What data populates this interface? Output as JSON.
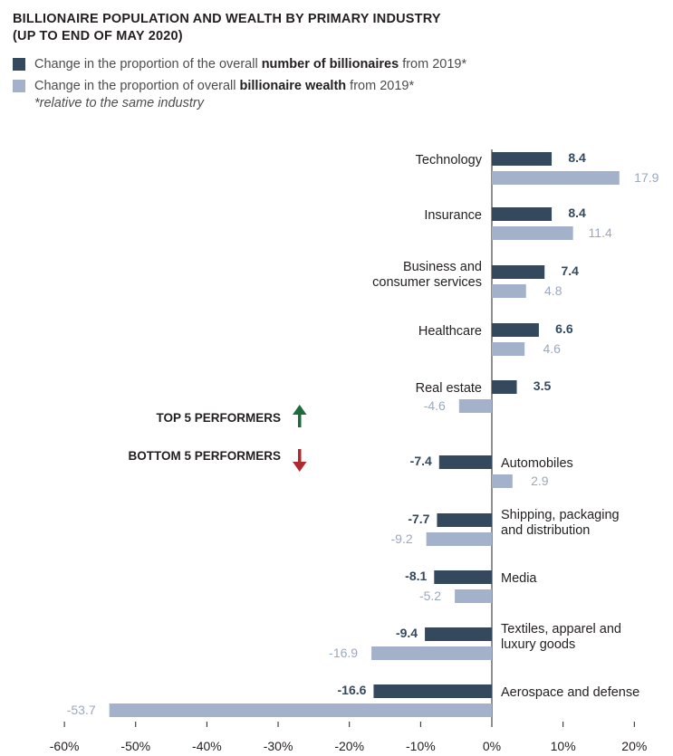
{
  "chart_data": {
    "type": "bar",
    "orientation": "horizontal",
    "title": "BILLIONAIRE POPULATION AND WEALTH BY PRIMARY INDUSTRY",
    "subtitle": "(UP TO END OF MAY 2020)",
    "legend": [
      {
        "prefix": "Change in the proportion of the overall ",
        "bold": "number of billionaires",
        "suffix": " from 2019*",
        "color": "#34495e"
      },
      {
        "prefix": "Change in the proportion of overall ",
        "bold": "billionaire wealth",
        "suffix": " from 2019*",
        "color": "#a3b1cb"
      }
    ],
    "note": "*relative to the same industry",
    "categories": [
      [
        "Technology"
      ],
      [
        "Insurance"
      ],
      [
        "Business and",
        "consumer services"
      ],
      [
        "Healthcare"
      ],
      [
        "Real estate"
      ],
      [
        "Automobiles"
      ],
      [
        "Shipping, packaging",
        "and distribution"
      ],
      [
        "Media"
      ],
      [
        "Textiles, apparel and",
        "luxury goods"
      ],
      [
        "Aerospace and defense"
      ]
    ],
    "series": [
      {
        "name": "Number of billionaires",
        "color": "#34495e",
        "values": [
          8.4,
          8.4,
          7.4,
          6.6,
          3.5,
          -7.4,
          -7.7,
          -8.1,
          -9.4,
          -16.6
        ],
        "labels": [
          "8.4",
          "8.4",
          "7.4",
          "6.6",
          "3.5",
          "-7.4",
          "-7.7",
          "-8.1",
          "-9.4",
          "-16.6"
        ]
      },
      {
        "name": "Billionaire wealth",
        "color": "#a3b1cb",
        "values": [
          17.9,
          11.4,
          4.8,
          4.6,
          -4.6,
          2.9,
          -9.2,
          -5.2,
          -16.9,
          -53.7
        ],
        "labels": [
          "17.9",
          "11.4",
          "4.8",
          "4.6",
          "-4.6",
          "2.9",
          "-9.2",
          "-5.2",
          "-16.9",
          "-53.7"
        ]
      }
    ],
    "xlim": [
      -60,
      20
    ],
    "xticks": [
      -60,
      -50,
      -40,
      -30,
      -20,
      -10,
      0,
      10,
      20
    ],
    "xtick_labels": [
      "-60%",
      "-50%",
      "-40%",
      "-30%",
      "-20%",
      "-10%",
      "0%",
      "10%",
      "20%"
    ],
    "top_label": "TOP 5 PERFORMERS",
    "bottom_label": "BOTTOM 5 PERFORMERS",
    "top_arrow_color": "#1e6b3a",
    "bottom_arrow_color": "#b3282d"
  }
}
